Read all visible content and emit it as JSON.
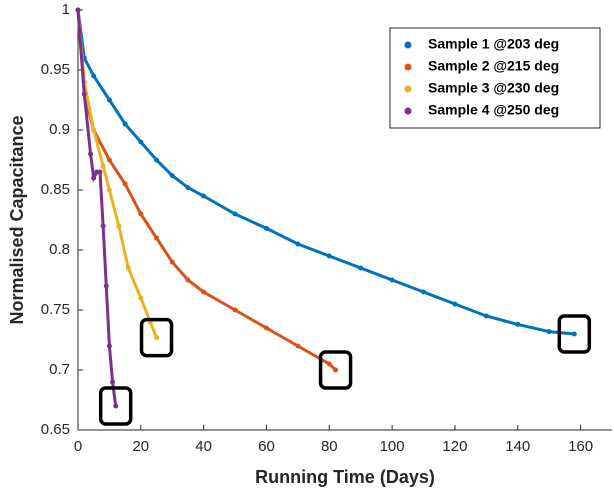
{
  "chart_data": {
    "type": "line",
    "x_label": "Running Time (Days)",
    "y_label": "Normalised Capacitance",
    "xlim": [
      0,
      170
    ],
    "ylim": [
      0.65,
      1
    ],
    "xticks": [
      0,
      20,
      40,
      60,
      80,
      100,
      120,
      140,
      160
    ],
    "yticks": [
      0.65,
      0.7,
      0.75,
      0.8,
      0.85,
      0.9,
      0.95,
      1
    ],
    "legend": "upper right",
    "series": [
      {
        "name": "Sample 1 @203 deg",
        "color": "#0072bd",
        "x": [
          0,
          2,
          5,
          10,
          15,
          20,
          25,
          30,
          35,
          40,
          50,
          60,
          70,
          80,
          90,
          100,
          110,
          120,
          130,
          140,
          150,
          158
        ],
        "values": [
          1.0,
          0.96,
          0.945,
          0.925,
          0.905,
          0.89,
          0.875,
          0.862,
          0.852,
          0.845,
          0.83,
          0.818,
          0.805,
          0.795,
          0.785,
          0.775,
          0.765,
          0.755,
          0.745,
          0.738,
          0.732,
          0.73
        ]
      },
      {
        "name": "Sample 2 @215 deg",
        "color": "#d95319",
        "x": [
          0,
          2,
          5,
          10,
          15,
          20,
          25,
          30,
          35,
          40,
          50,
          60,
          70,
          80,
          82
        ],
        "values": [
          1.0,
          0.93,
          0.9,
          0.875,
          0.855,
          0.83,
          0.81,
          0.79,
          0.775,
          0.765,
          0.75,
          0.735,
          0.72,
          0.705,
          0.7
        ]
      },
      {
        "name": "Sample 3 @230 deg",
        "color": "#edb120",
        "x": [
          0,
          2,
          5,
          8,
          10,
          13,
          16,
          20,
          23,
          25
        ],
        "values": [
          1.0,
          0.94,
          0.9,
          0.87,
          0.85,
          0.82,
          0.785,
          0.76,
          0.74,
          0.727
        ]
      },
      {
        "name": "Sample 4 @250 deg",
        "color": "#7e2f8e",
        "x": [
          0,
          2,
          4,
          5,
          6,
          7,
          8,
          9,
          10,
          11,
          12
        ],
        "values": [
          1.0,
          0.93,
          0.88,
          0.86,
          0.865,
          0.865,
          0.82,
          0.77,
          0.72,
          0.69,
          0.67
        ]
      }
    ]
  }
}
